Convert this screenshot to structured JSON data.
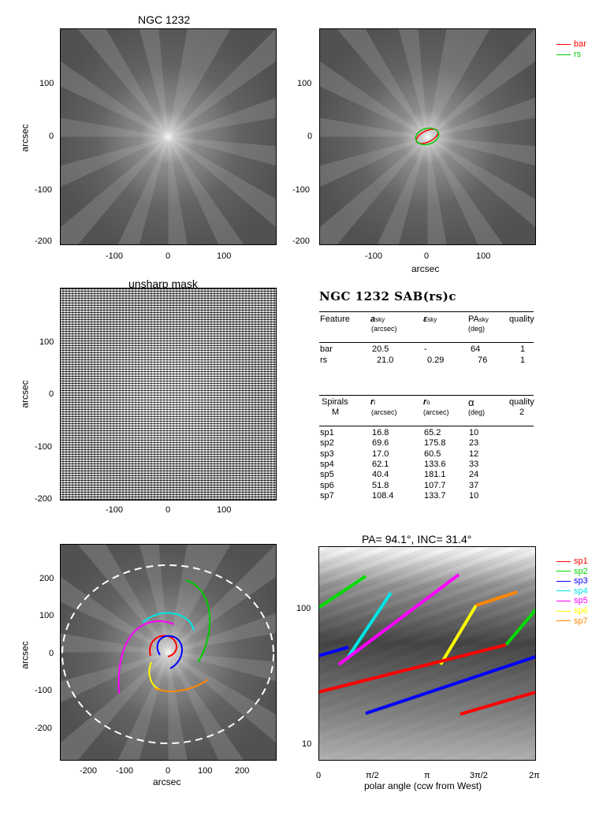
{
  "panel1": {
    "title": "NGC 1232",
    "ylabel": "arcsec",
    "yticks": [
      "100",
      "0",
      "-100",
      "-200"
    ],
    "xticks": [
      "-100",
      "0",
      "100"
    ]
  },
  "panel2": {
    "xlabel": "arcsec",
    "yticks": [
      "100",
      "0",
      "-100",
      "-200"
    ],
    "xticks": [
      "-100",
      "0",
      "100"
    ],
    "legend": [
      {
        "label": "bar",
        "color": "#ff0000"
      },
      {
        "label": "rs",
        "color": "#00cc00"
      }
    ]
  },
  "panel3": {
    "title": "unsharp mask",
    "ylabel": "arcsec",
    "yticks": [
      "100",
      "0",
      "-100",
      "-200"
    ],
    "xticks": [
      "-100",
      "0",
      "100"
    ]
  },
  "table": {
    "heading": "NGC 1232  SAB(rs)c",
    "feature_header": {
      "feature": "Feature",
      "a": "a",
      "a_sub": "sky",
      "a_unit": "(arcsec)",
      "eps": "ε",
      "eps_sub": "sky",
      "pa": "PA",
      "pa_sub": "sky",
      "pa_unit": "(deg)",
      "quality": "quality"
    },
    "features": [
      {
        "name": "bar",
        "a": "20.5",
        "eps": "-",
        "pa": "64",
        "q": "1"
      },
      {
        "name": "rs",
        "a": "21.0",
        "eps": "0.29",
        "pa": "76",
        "q": "1"
      }
    ],
    "spiral_header": {
      "spirals": "Spirals",
      "m": "M",
      "ri": "r",
      "ri_sub": "i",
      "ri_unit": "(arcsec)",
      "ro": "r",
      "ro_sub": "o",
      "ro_unit": "(arcsec)",
      "alpha": "α",
      "alpha_unit": "(deg)",
      "quality": "quality",
      "quality_val": "2"
    },
    "spirals": [
      {
        "name": "sp1",
        "ri": "16.8",
        "ro": "65.2",
        "alpha": "10"
      },
      {
        "name": "sp2",
        "ri": "69.6",
        "ro": "175.8",
        "alpha": "23"
      },
      {
        "name": "sp3",
        "ri": "17.0",
        "ro": "60.5",
        "alpha": "12"
      },
      {
        "name": "sp4",
        "ri": "62.1",
        "ro": "133.6",
        "alpha": "33"
      },
      {
        "name": "sp5",
        "ri": "40.4",
        "ro": "181.1",
        "alpha": "24"
      },
      {
        "name": "sp6",
        "ri": "51.8",
        "ro": "107.7",
        "alpha": "37"
      },
      {
        "name": "sp7",
        "ri": "108.4",
        "ro": "133.7",
        "alpha": "10"
      }
    ]
  },
  "panel5": {
    "xlabel": "arcsec",
    "ylabel": "arcsec",
    "yticks": [
      "200",
      "100",
      "0",
      "-100",
      "-200"
    ],
    "xticks": [
      "-200",
      "-100",
      "0",
      "100",
      "200"
    ]
  },
  "panel6": {
    "title": "PA=  94.1°, INC=  31.4°",
    "xlabel": "polar angle (ccw from West)",
    "yticks": [
      "100",
      "10"
    ],
    "xticks": [
      "0",
      "π/2",
      "π",
      "3π/2",
      "2π"
    ],
    "legend": [
      {
        "label": "sp1",
        "color": "#ff0000"
      },
      {
        "label": "sp2",
        "color": "#00dd00"
      },
      {
        "label": "sp3",
        "color": "#0000ff"
      },
      {
        "label": "sp4",
        "color": "#00e5e5"
      },
      {
        "label": "sp5",
        "color": "#ff00ff"
      },
      {
        "label": "sp6",
        "color": "#ffff00"
      },
      {
        "label": "sp7",
        "color": "#ff8800"
      }
    ]
  }
}
